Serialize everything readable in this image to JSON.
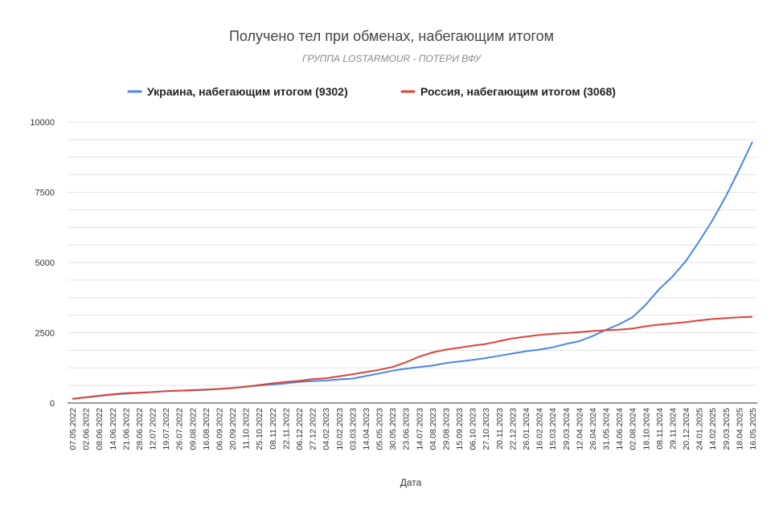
{
  "chart_data": {
    "type": "line",
    "title": "Получено тел при обменах, набегающим итогом",
    "subtitle": "ГРУППА LOSTARMOUR - ПОТЕРИ ВФУ",
    "xlabel": "Дата",
    "ylabel": "",
    "ylim": [
      0,
      10000
    ],
    "yticks": [
      "0",
      "2500",
      "5000",
      "7500",
      "10000"
    ],
    "grid": true,
    "legend_position": "top",
    "x": [
      "07.05.2022",
      "02.06.2022",
      "08.06.2022",
      "14.06.2022",
      "21.06.2022",
      "28.06.2022",
      "12.07.2022",
      "19.07.2022",
      "26.07.2022",
      "09.08.2022",
      "16.08.2022",
      "06.09.2022",
      "20.09.2022",
      "11.10.2022",
      "25.10.2022",
      "08.11.2022",
      "22.11.2022",
      "06.12.2022",
      "27.12.2022",
      "04.02.2023",
      "10.02.2023",
      "03.03.2023",
      "14.04.2023",
      "05.05.2023",
      "30.05.2023",
      "23.06.2023",
      "14.07.2023",
      "04.08.2023",
      "29.08.2023",
      "15.09.2023",
      "06.10.2023",
      "27.10.2023",
      "20.11.2023",
      "22.12.2023",
      "26.01.2024",
      "16.02.2024",
      "15.03.2024",
      "29.03.2024",
      "12.04.2024",
      "26.04.2024",
      "31.05.2024",
      "14.06.2024",
      "02.08.2024",
      "18.10.2024",
      "08.11.2024",
      "29.11.2024",
      "20.12.2024",
      "24.01.2025",
      "14.02.2025",
      "29.03.2025",
      "18.04.2025",
      "16.05.2025"
    ],
    "series": [
      {
        "name": "Украина, набегающим итогом (9302)",
        "color": "#4a86e8",
        "values": [
          150,
          200,
          250,
          300,
          330,
          360,
          390,
          420,
          440,
          450,
          470,
          500,
          540,
          580,
          620,
          660,
          700,
          750,
          780,
          800,
          840,
          870,
          960,
          1050,
          1150,
          1220,
          1280,
          1330,
          1420,
          1480,
          1530,
          1600,
          1680,
          1760,
          1840,
          1900,
          1980,
          2100,
          2200,
          2380,
          2600,
          2800,
          3050,
          3500,
          4050,
          4500,
          5050,
          5750,
          6500,
          7350,
          8300,
          9302
        ]
      },
      {
        "name": "Россия, набегающим итогом (3068)",
        "color": "#db4437",
        "values": [
          150,
          200,
          260,
          310,
          350,
          370,
          390,
          420,
          440,
          460,
          480,
          500,
          530,
          580,
          640,
          700,
          750,
          790,
          850,
          880,
          950,
          1020,
          1100,
          1180,
          1280,
          1450,
          1650,
          1800,
          1900,
          1970,
          2040,
          2100,
          2200,
          2300,
          2360,
          2420,
          2460,
          2490,
          2520,
          2560,
          2590,
          2610,
          2650,
          2730,
          2790,
          2830,
          2880,
          2940,
          2990,
          3020,
          3050,
          3068
        ]
      }
    ]
  }
}
